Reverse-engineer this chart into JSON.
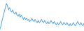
{
  "values": [
    2,
    5,
    10,
    14,
    18,
    22,
    26,
    24,
    20,
    22,
    19,
    18,
    20,
    17,
    16,
    18,
    15,
    14,
    16,
    13,
    15,
    13,
    11,
    13,
    11,
    12,
    10,
    11,
    9,
    10,
    12,
    10,
    9,
    11,
    9,
    8,
    10,
    8,
    9,
    11,
    9,
    8,
    10,
    8,
    7,
    9,
    7,
    8,
    10,
    8,
    7,
    9,
    7,
    6,
    8,
    6,
    7,
    9,
    7,
    6,
    8,
    7,
    6,
    8,
    6,
    5,
    7,
    5,
    6,
    8,
    6,
    5,
    7,
    9,
    7,
    6,
    8,
    6,
    5,
    7
  ],
  "line_color": "#4da6e8",
  "background_color": "#ffffff",
  "ylim": [
    0,
    30
  ],
  "linewidth": 0.7
}
